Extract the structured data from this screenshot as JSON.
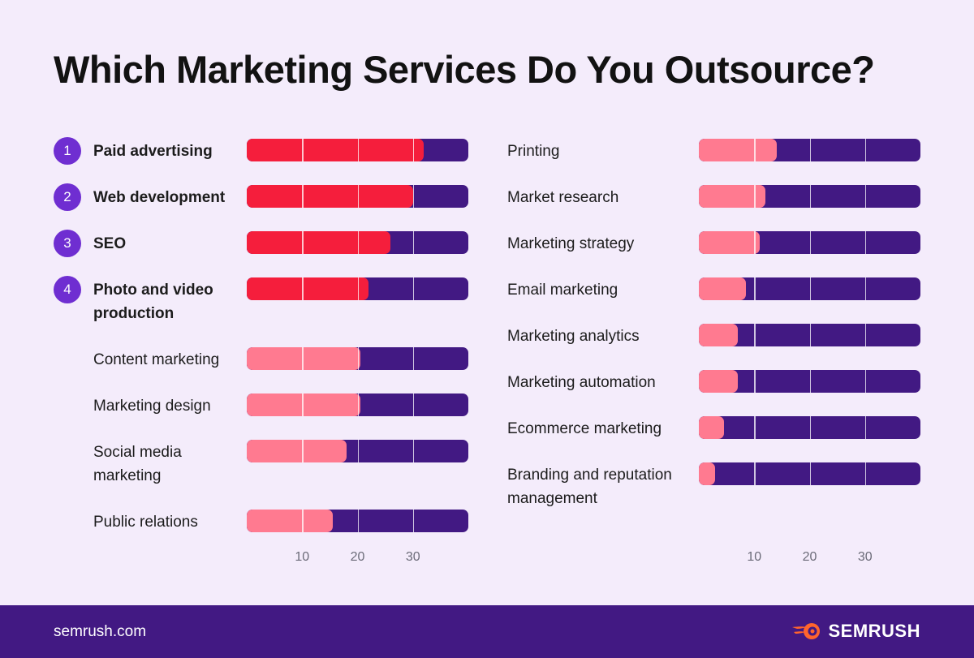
{
  "title": "Which Marketing Services Do You Outsource?",
  "footer": {
    "site": "semrush.com",
    "brand": "SEMRUSH"
  },
  "colors": {
    "background": "#f4ecfb",
    "track": "#421983",
    "top_fill": "#f51e3c",
    "other_fill": "#ff7a90",
    "rank_badge": "#6f2ed1",
    "logo_accent": "#ff642d"
  },
  "chart_data": [
    {
      "type": "bar",
      "orientation": "horizontal",
      "title": "",
      "xlabel": "",
      "ylabel": "",
      "xlim": [
        0,
        40
      ],
      "xticks": [
        "10",
        "20",
        "30"
      ],
      "grid": true,
      "categories": [
        {
          "rank": "1",
          "label": "Paid advertising",
          "value": 32,
          "highlight": true
        },
        {
          "rank": "2",
          "label": "Web development",
          "value": 30,
          "highlight": true
        },
        {
          "rank": "3",
          "label": "SEO",
          "value": 26,
          "highlight": true
        },
        {
          "rank": "4",
          "label": "Photo and video production",
          "value": 22,
          "highlight": true
        },
        {
          "rank": "",
          "label": "Content marketing",
          "value": 20.5,
          "highlight": false
        },
        {
          "rank": "",
          "label": "Marketing design",
          "value": 20.5,
          "highlight": false
        },
        {
          "rank": "",
          "label": "Social media marketing",
          "value": 18,
          "highlight": false
        },
        {
          "rank": "",
          "label": "Public relations",
          "value": 15.5,
          "highlight": false
        }
      ]
    },
    {
      "type": "bar",
      "orientation": "horizontal",
      "title": "",
      "xlabel": "",
      "ylabel": "",
      "xlim": [
        0,
        40
      ],
      "xticks": [
        "10",
        "20",
        "30"
      ],
      "grid": true,
      "categories": [
        {
          "rank": "",
          "label": "Printing",
          "value": 14,
          "highlight": false
        },
        {
          "rank": "",
          "label": "Market research",
          "value": 12,
          "highlight": false
        },
        {
          "rank": "",
          "label": "Marketing strategy",
          "value": 11,
          "highlight": false
        },
        {
          "rank": "",
          "label": "Email marketing",
          "value": 8.5,
          "highlight": false
        },
        {
          "rank": "",
          "label": "Marketing analytics",
          "value": 7,
          "highlight": false
        },
        {
          "rank": "",
          "label": "Marketing automation",
          "value": 7,
          "highlight": false
        },
        {
          "rank": "",
          "label": "Ecommerce marketing",
          "value": 4.5,
          "highlight": false
        },
        {
          "rank": "",
          "label": "Branding and reputation management",
          "value": 3,
          "highlight": false
        }
      ]
    }
  ]
}
